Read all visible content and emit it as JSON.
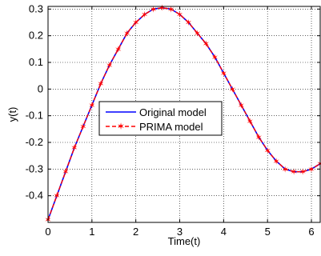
{
  "chart_data": {
    "type": "line",
    "xlabel": "Time(t)",
    "ylabel": "y(t)",
    "xlim": [
      0,
      6.2
    ],
    "ylim": [
      -0.5,
      0.31
    ],
    "xticks": [
      0,
      1,
      2,
      3,
      4,
      5,
      6
    ],
    "yticks": [
      0.3,
      0.2,
      0.1,
      0,
      -0.1,
      -0.2,
      -0.3,
      -0.4
    ],
    "xtick_labels": [
      "0",
      "1",
      "2",
      "3",
      "4",
      "5",
      "6"
    ],
    "ytick_labels": [
      "0.3",
      "0.2",
      "0.1",
      "0",
      "-0.1",
      "-0.2",
      "-0.3",
      "-0.4"
    ],
    "grid": true,
    "legend_position": "center-left",
    "series": [
      {
        "name": "Original model",
        "color": "#0000ff",
        "line_style": "solid",
        "marker": "none",
        "x": [
          0,
          0.2,
          0.4,
          0.6,
          0.8,
          1.0,
          1.2,
          1.4,
          1.6,
          1.8,
          2.0,
          2.2,
          2.4,
          2.6,
          2.8,
          3.0,
          3.2,
          3.4,
          3.6,
          3.8,
          4.0,
          4.2,
          4.4,
          4.6,
          4.8,
          5.0,
          5.2,
          5.4,
          5.6,
          5.8,
          6.0,
          6.2
        ],
        "y": [
          -0.49,
          -0.4,
          -0.31,
          -0.22,
          -0.14,
          -0.06,
          0.02,
          0.09,
          0.15,
          0.21,
          0.25,
          0.28,
          0.3,
          0.305,
          0.3,
          0.28,
          0.25,
          0.21,
          0.17,
          0.12,
          0.06,
          0.0,
          -0.06,
          -0.12,
          -0.18,
          -0.23,
          -0.27,
          -0.3,
          -0.31,
          -0.31,
          -0.3,
          -0.28
        ]
      },
      {
        "name": "PRIMA model",
        "color": "#ff0000",
        "line_style": "dashed",
        "marker": "star",
        "x": [
          0,
          0.2,
          0.4,
          0.6,
          0.8,
          1.0,
          1.2,
          1.4,
          1.6,
          1.8,
          2.0,
          2.2,
          2.4,
          2.6,
          2.8,
          3.0,
          3.2,
          3.4,
          3.6,
          3.8,
          4.0,
          4.2,
          4.4,
          4.6,
          4.8,
          5.0,
          5.2,
          5.4,
          5.6,
          5.8,
          6.0,
          6.2
        ],
        "y": [
          -0.49,
          -0.4,
          -0.31,
          -0.22,
          -0.14,
          -0.06,
          0.02,
          0.09,
          0.15,
          0.21,
          0.25,
          0.28,
          0.3,
          0.305,
          0.3,
          0.28,
          0.25,
          0.21,
          0.17,
          0.12,
          0.06,
          0.0,
          -0.06,
          -0.12,
          -0.18,
          -0.23,
          -0.27,
          -0.3,
          -0.31,
          -0.31,
          -0.3,
          -0.28
        ]
      }
    ]
  }
}
